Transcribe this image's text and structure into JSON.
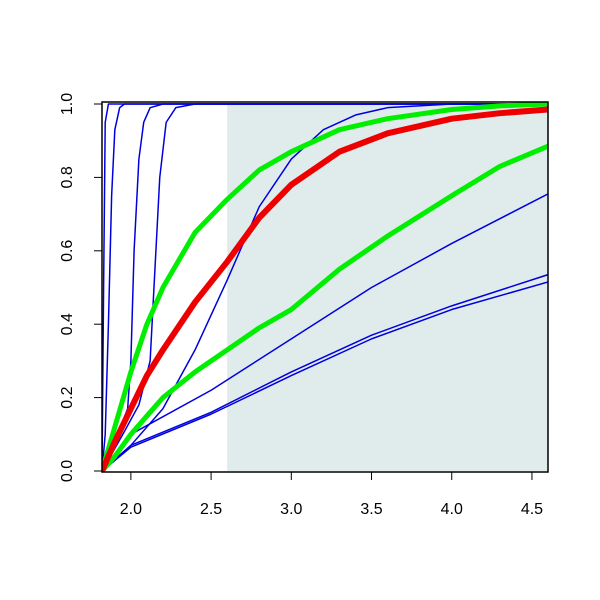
{
  "chart_data": {
    "type": "line",
    "xlim": [
      1.82,
      4.6
    ],
    "ylim": [
      0,
      1
    ],
    "xticks": [
      {
        "value": 2.0,
        "label": "2.0"
      },
      {
        "value": 2.5,
        "label": "2.5"
      },
      {
        "value": 3.0,
        "label": "3.0"
      },
      {
        "value": 3.5,
        "label": "3.5"
      },
      {
        "value": 4.0,
        "label": "4.0"
      },
      {
        "value": 4.5,
        "label": "4.5"
      }
    ],
    "yticks": [
      {
        "value": 0,
        "label": "0.0"
      },
      {
        "value": 0.2,
        "label": "0.2"
      },
      {
        "value": 0.4,
        "label": "0.4"
      },
      {
        "value": 0.6,
        "label": "0.6"
      },
      {
        "value": 0.8,
        "label": "0.8"
      },
      {
        "value": 1.0,
        "label": "1.0"
      }
    ],
    "shade_x": [
      2.6,
      4.6
    ],
    "shade_color": "#e0ecec",
    "series": [
      {
        "color": "#0000dd",
        "width": 1.5,
        "x": [
          1.82,
          1.83,
          1.84,
          1.86,
          4.6
        ],
        "values": [
          0,
          0.5,
          0.95,
          1,
          1
        ]
      },
      {
        "color": "#0000dd",
        "width": 1.5,
        "x": [
          1.82,
          1.84,
          1.86,
          1.88,
          1.9,
          1.93,
          1.96,
          4.6
        ],
        "values": [
          0,
          0.1,
          0.4,
          0.75,
          0.93,
          0.99,
          1,
          1
        ]
      },
      {
        "color": "#0000dd",
        "width": 1.5,
        "x": [
          1.82,
          1.9,
          1.98,
          2.0,
          2.02,
          2.05,
          2.08,
          2.12,
          2.2,
          4.6
        ],
        "values": [
          0,
          0.08,
          0.17,
          0.3,
          0.6,
          0.85,
          0.95,
          0.99,
          1,
          1
        ]
      },
      {
        "color": "#0000dd",
        "width": 1.5,
        "x": [
          1.82,
          1.95,
          2.05,
          2.12,
          2.15,
          2.18,
          2.22,
          2.28,
          2.4,
          4.6
        ],
        "values": [
          0,
          0.1,
          0.18,
          0.3,
          0.55,
          0.8,
          0.95,
          0.99,
          1,
          1
        ]
      },
      {
        "color": "#0000dd",
        "width": 1.5,
        "x": [
          1.82,
          2.0,
          2.2,
          2.4,
          2.6,
          2.8,
          3.0,
          3.2,
          3.4,
          3.6,
          4.0,
          4.6
        ],
        "values": [
          0,
          0.07,
          0.17,
          0.33,
          0.52,
          0.72,
          0.85,
          0.93,
          0.97,
          0.99,
          1,
          1
        ]
      },
      {
        "color": "#0000dd",
        "width": 1.5,
        "x": [
          1.82,
          2.0,
          2.5,
          3.0,
          3.5,
          4.0,
          4.6
        ],
        "values": [
          0,
          0.1,
          0.22,
          0.36,
          0.5,
          0.62,
          0.755
        ]
      },
      {
        "color": "#0000dd",
        "width": 1.5,
        "x": [
          1.82,
          2.0,
          2.5,
          3.0,
          3.5,
          4.0,
          4.6
        ],
        "values": [
          0,
          0.07,
          0.16,
          0.27,
          0.37,
          0.45,
          0.535
        ]
      },
      {
        "color": "#0000dd",
        "width": 1.5,
        "x": [
          1.82,
          2.0,
          2.5,
          3.0,
          3.5,
          4.0,
          4.6
        ],
        "values": [
          0,
          0.065,
          0.155,
          0.26,
          0.36,
          0.44,
          0.515
        ]
      },
      {
        "color": "#00ee00",
        "width": 5,
        "x": [
          1.82,
          1.9,
          2.0,
          2.1,
          2.2,
          2.4,
          2.6,
          2.8,
          3.0,
          3.3,
          3.6,
          4.0,
          4.3,
          4.6
        ],
        "values": [
          0,
          0.12,
          0.27,
          0.4,
          0.5,
          0.65,
          0.74,
          0.82,
          0.87,
          0.93,
          0.96,
          0.985,
          0.995,
          1.0
        ]
      },
      {
        "color": "#00ee00",
        "width": 5,
        "x": [
          1.82,
          1.9,
          2.0,
          2.1,
          2.2,
          2.4,
          2.6,
          2.8,
          3.0,
          3.3,
          3.6,
          4.0,
          4.3,
          4.6
        ],
        "values": [
          0,
          0.04,
          0.1,
          0.15,
          0.2,
          0.27,
          0.33,
          0.39,
          0.44,
          0.55,
          0.64,
          0.75,
          0.83,
          0.885
        ]
      },
      {
        "color": "#ee0000",
        "width": 6,
        "x": [
          1.82,
          1.9,
          2.0,
          2.1,
          2.2,
          2.4,
          2.6,
          2.8,
          3.0,
          3.3,
          3.6,
          4.0,
          4.3,
          4.6
        ],
        "values": [
          0,
          0.08,
          0.17,
          0.26,
          0.33,
          0.46,
          0.57,
          0.69,
          0.78,
          0.87,
          0.92,
          0.96,
          0.975,
          0.985
        ]
      }
    ]
  }
}
